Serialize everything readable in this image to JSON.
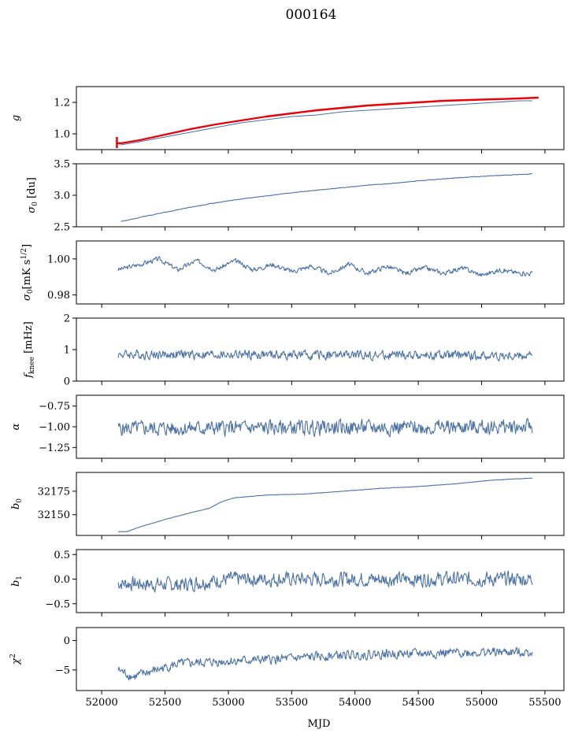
{
  "figure": {
    "title": "000164",
    "xlabel": "MJD",
    "colors": {
      "series": "#4c72a4",
      "fit": "#e8000b",
      "axes": "#000000"
    }
  },
  "chart_data": [
    {
      "type": "line",
      "ylabel": "g",
      "ylabel_sub": "",
      "ylim": [
        0.9,
        1.3
      ],
      "yticks": [
        1.0,
        1.2
      ],
      "ytick_labels": [
        "1.0",
        "1.2"
      ],
      "xlim": [
        51800,
        55650
      ],
      "series": [
        {
          "x": [
            52150,
            52300,
            52500,
            52700,
            52900,
            53100,
            53300,
            53500,
            53700,
            53900,
            54100,
            54300,
            54500,
            54700,
            54900,
            55100,
            55300,
            55400
          ],
          "values": [
            0.93,
            0.95,
            0.98,
            1.01,
            1.04,
            1.07,
            1.09,
            1.11,
            1.12,
            1.14,
            1.15,
            1.16,
            1.17,
            1.18,
            1.19,
            1.2,
            1.21,
            1.21
          ],
          "color": "#4c72a4"
        },
        {
          "x": [
            52120,
            52150,
            52300,
            52500,
            52700,
            52900,
            53100,
            53300,
            53500,
            53700,
            53900,
            54100,
            54300,
            54500,
            54700,
            54900,
            55100,
            55300,
            55450
          ],
          "values": [
            0.94,
            0.94,
            0.96,
            0.995,
            1.03,
            1.06,
            1.085,
            1.11,
            1.13,
            1.15,
            1.165,
            1.18,
            1.19,
            1.2,
            1.21,
            1.215,
            1.22,
            1.225,
            1.23
          ],
          "color": "#e8000b",
          "linewidth": 2.4
        }
      ],
      "error_bar": {
        "x": 52120,
        "low": 0.91,
        "high": 0.98,
        "color": "#e8000b"
      }
    },
    {
      "type": "line",
      "ylabel": "σ",
      "ylabel_sub": "0",
      "ylabel_suffix": " [du]",
      "ylim": [
        2.5,
        3.5
      ],
      "yticks": [
        2.5,
        3.0,
        3.5
      ],
      "ytick_labels": [
        "2.5",
        "3.0",
        "3.5"
      ],
      "xlim": [
        51800,
        55650
      ],
      "series": [
        {
          "x": [
            52150,
            52200,
            52300,
            52500,
            52700,
            52900,
            53100,
            53300,
            53500,
            53700,
            53900,
            54100,
            54300,
            54500,
            54700,
            54900,
            55100,
            55300,
            55400
          ],
          "values": [
            2.59,
            2.6,
            2.65,
            2.73,
            2.81,
            2.88,
            2.94,
            2.99,
            3.04,
            3.08,
            3.12,
            3.16,
            3.19,
            3.23,
            3.26,
            3.29,
            3.31,
            3.33,
            3.34
          ],
          "color": "#4c72a4",
          "noise": 0.004,
          "seed": 2
        }
      ]
    },
    {
      "type": "line",
      "ylabel": "σ",
      "ylabel_sub": "0",
      "ylabel_suffix": "[mK s",
      "ylabel_sup": "1/2",
      "ylabel_end": "]",
      "ylim": [
        0.975,
        1.01
      ],
      "yticks": [
        0.98,
        1.0
      ],
      "ytick_labels": [
        "0.98",
        "1.00"
      ],
      "xlim": [
        51800,
        55650
      ],
      "series": [
        {
          "x": [
            52130,
            52300,
            52450,
            52600,
            52750,
            52900,
            53050,
            53200,
            53350,
            53500,
            53650,
            53800,
            53950,
            54100,
            54250,
            54400,
            54550,
            54700,
            54850,
            55000,
            55150,
            55300,
            55400
          ],
          "values": [
            0.994,
            0.997,
            1.0,
            0.994,
            0.999,
            0.994,
            0.999,
            0.994,
            0.997,
            0.993,
            0.996,
            0.992,
            0.997,
            0.992,
            0.996,
            0.992,
            0.995,
            0.992,
            0.995,
            0.991,
            0.994,
            0.992,
            0.992
          ],
          "color": "#4c72a4",
          "noise": 0.0012,
          "seed": 3
        }
      ]
    },
    {
      "type": "line",
      "ylabel": "f",
      "ylabel_sub": "knee",
      "ylabel_suffix": " [mHz]",
      "ylim": [
        0,
        2
      ],
      "yticks": [
        0,
        1,
        2
      ],
      "ytick_labels": [
        "0",
        "1",
        "2"
      ],
      "xlim": [
        51800,
        55650
      ],
      "series": [
        {
          "x": [
            52130,
            55400
          ],
          "values": [
            0.85,
            0.8
          ],
          "color": "#4c72a4",
          "noise": 0.13,
          "seed": 4
        }
      ]
    },
    {
      "type": "line",
      "ylabel": "α",
      "ylabel_sub": "",
      "ylim": [
        -1.38,
        -0.62
      ],
      "yticks": [
        -1.25,
        -1.0,
        -0.75
      ],
      "ytick_labels": [
        "−1.25",
        "−1.00",
        "−0.75"
      ],
      "xlim": [
        51800,
        55650
      ],
      "series": [
        {
          "x": [
            52130,
            55400
          ],
          "values": [
            -1.02,
            -1.0
          ],
          "color": "#4c72a4",
          "noise": 0.08,
          "seed": 5
        }
      ]
    },
    {
      "type": "line",
      "ylabel": "b",
      "ylabel_sub": "0",
      "ylim": [
        32128,
        32195
      ],
      "yticks": [
        32150,
        32175
      ],
      "ytick_labels": [
        "32150",
        "32175"
      ],
      "xlim": [
        51800,
        55650
      ],
      "series": [
        {
          "x": [
            52130,
            52200,
            52300,
            52500,
            52700,
            52850,
            52950,
            53050,
            53300,
            53600,
            53900,
            54200,
            54500,
            54800,
            55100,
            55400
          ],
          "values": [
            32132,
            32132,
            32137,
            32145,
            32152,
            32157,
            32164,
            32168,
            32171,
            32172,
            32175,
            32178,
            32180,
            32183,
            32187,
            32189
          ],
          "color": "#4c72a4",
          "noise": 0.15,
          "seed": 6
        }
      ]
    },
    {
      "type": "line",
      "ylabel": "b",
      "ylabel_sub": "1",
      "ylim": [
        -0.68,
        0.6
      ],
      "yticks": [
        -0.5,
        0.0,
        0.5
      ],
      "ytick_labels": [
        "−0.5",
        "0.0",
        "0.5"
      ],
      "xlim": [
        51800,
        55650
      ],
      "series": [
        {
          "x": [
            52130,
            52600,
            53000,
            55400
          ],
          "values": [
            -0.08,
            -0.12,
            0.0,
            0.0
          ],
          "color": "#4c72a4",
          "noise": 0.13,
          "seed": 7
        }
      ]
    },
    {
      "type": "line",
      "ylabel": "χ",
      "ylabel_sub": "",
      "ylabel_sup": "2",
      "ylim": [
        -8.5,
        2.2
      ],
      "yticks": [
        -5,
        0
      ],
      "ytick_labels": [
        "−5",
        "0"
      ],
      "xlim": [
        51800,
        55650
      ],
      "xticks": [
        52000,
        52500,
        53000,
        53500,
        54000,
        54500,
        55000,
        55500
      ],
      "xtick_labels": [
        "52000",
        "52500",
        "53000",
        "53500",
        "54000",
        "54500",
        "55000",
        "55500"
      ],
      "series": [
        {
          "x": [
            52130,
            52250,
            52350,
            52600,
            53000,
            53400,
            53800,
            54200,
            54600,
            55000,
            55400
          ],
          "values": [
            -5.0,
            -6.2,
            -5.5,
            -4.0,
            -3.5,
            -3.2,
            -2.6,
            -2.3,
            -2.2,
            -2.0,
            -2.0
          ],
          "color": "#4c72a4",
          "noise": 0.7,
          "seed": 8
        }
      ]
    }
  ]
}
